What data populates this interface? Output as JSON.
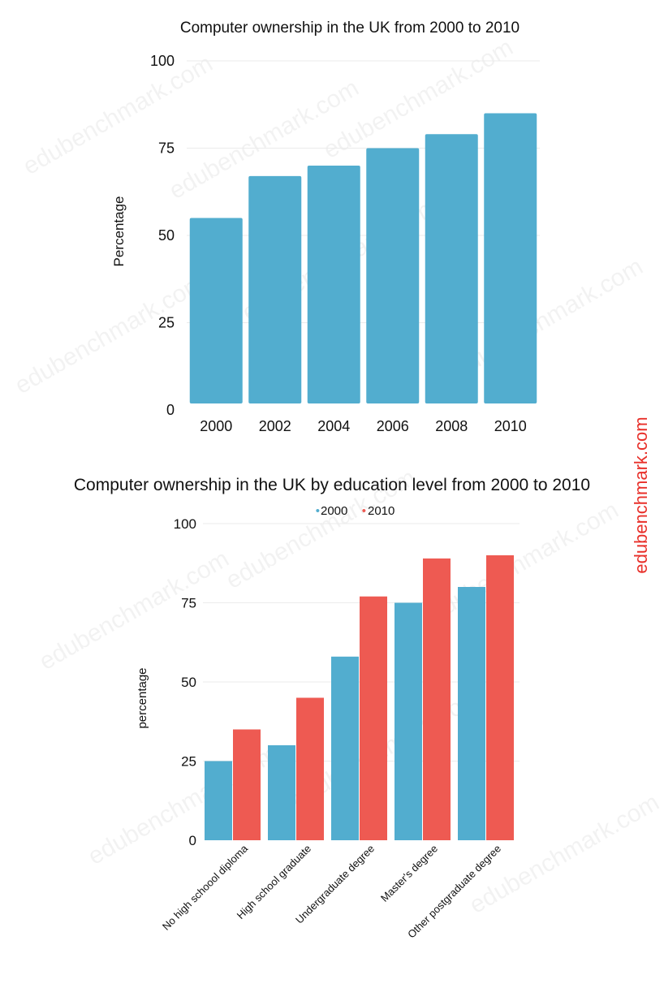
{
  "brand": {
    "side_text": "edubenchmark.com",
    "side_color": "#e8302a",
    "watermark_text": "edubenchmark.com"
  },
  "colors": {
    "series_2000": "#52adcf",
    "series_2010": "#ee5a52",
    "grid": "#ebebeb",
    "text": "#111111"
  },
  "chart_data": [
    {
      "type": "bar",
      "title": "Computer ownership in the UK from 2000 to 2010",
      "xlabel": "",
      "ylabel": "Percentage",
      "categories": [
        "2000",
        "2002",
        "2004",
        "2006",
        "2008",
        "2010"
      ],
      "values": [
        55,
        67,
        70,
        75,
        79,
        85
      ],
      "ylim": [
        0,
        100
      ],
      "yticks": [
        "0",
        "25",
        "50",
        "75",
        "100"
      ],
      "grid": true,
      "legend": "none"
    },
    {
      "type": "bar",
      "title": "Computer ownership in the UK by education level from 2000 to 2010",
      "xlabel": "",
      "ylabel": "percentage",
      "categories": [
        "No high schoool diploma",
        "High school graduate",
        "Undergraduate degree",
        "Master's degree",
        "Other postgraduate degree"
      ],
      "series": [
        {
          "name": "2000",
          "values": [
            25,
            30,
            58,
            75,
            80
          ]
        },
        {
          "name": "2010",
          "values": [
            35,
            45,
            77,
            89,
            90
          ]
        }
      ],
      "ylim": [
        0,
        100
      ],
      "yticks": [
        "0",
        "25",
        "50",
        "75",
        "100"
      ],
      "grid": true,
      "legend": "top-center"
    }
  ]
}
